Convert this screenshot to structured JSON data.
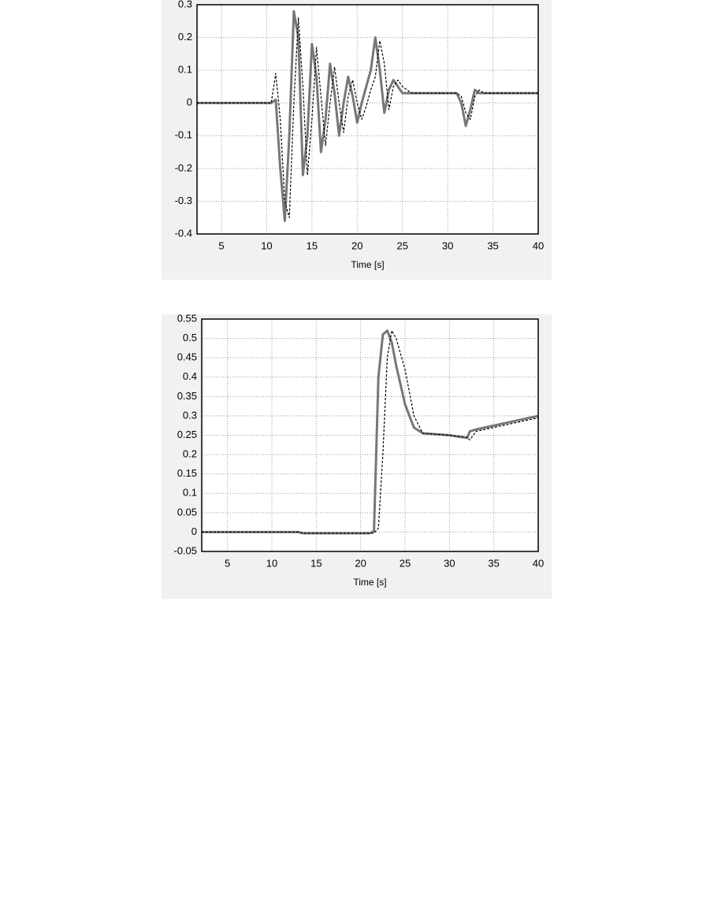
{
  "chart_data": [
    {
      "type": "line",
      "x_label": "Time [s]",
      "x": [
        2.3,
        5,
        10,
        10.5,
        11,
        11.5,
        12,
        12.5,
        13,
        13.5,
        14,
        14.5,
        15,
        15.5,
        16,
        16.5,
        17,
        17.5,
        18,
        18.5,
        19,
        19.5,
        20,
        20.5,
        21,
        21.5,
        22,
        22.5,
        23,
        23.5,
        24,
        24.5,
        25,
        26,
        30,
        31,
        31.5,
        32,
        32.5,
        33,
        33.5,
        34,
        40
      ],
      "series": [
        {
          "color": "#777777",
          "dash": false,
          "width": 3,
          "values": [
            0,
            0,
            0,
            0,
            0.01,
            -0.2,
            -0.36,
            -0.1,
            0.28,
            0.2,
            -0.22,
            -0.1,
            0.18,
            0.08,
            -0.15,
            -0.05,
            0.12,
            0.03,
            -0.1,
            0,
            0.08,
            0.02,
            -0.06,
            0,
            0.05,
            0.1,
            0.2,
            0.1,
            -0.03,
            0.04,
            0.07,
            0.05,
            0.03,
            0.03,
            0.03,
            0.03,
            0,
            -0.07,
            -0.02,
            0.04,
            0.03,
            0.03,
            0.03
          ]
        },
        {
          "color": "#000000",
          "dash": true,
          "width": 1.2,
          "values": [
            0,
            0,
            0,
            0,
            0.09,
            -0.05,
            -0.3,
            -0.35,
            0,
            0.26,
            0.05,
            -0.22,
            -0.05,
            0.17,
            0.02,
            -0.13,
            0,
            0.11,
            0,
            -0.09,
            0.02,
            0.07,
            0,
            -0.05,
            -0.01,
            0.04,
            0.08,
            0.19,
            0.12,
            -0.02,
            0.05,
            0.07,
            0.05,
            0.03,
            0.03,
            0.03,
            0.02,
            -0.03,
            -0.05,
            0.02,
            0.04,
            0.03,
            0.03
          ]
        }
      ],
      "xlim": [
        2.3,
        40
      ],
      "xticks": [
        5,
        10,
        15,
        20,
        25,
        30,
        35,
        40
      ],
      "ylim": [
        -0.4,
        0.3
      ],
      "yticks": [
        -0.4,
        -0.3,
        -0.2,
        -0.1,
        0,
        0.1,
        0.2,
        0.3
      ],
      "grid": true
    },
    {
      "type": "line",
      "x_label": "Time [s]",
      "x": [
        2.1,
        13,
        13.5,
        21,
        21.5,
        22,
        22.5,
        23,
        23.5,
        24,
        25,
        26,
        27,
        30,
        32,
        32.3,
        33,
        40
      ],
      "series": [
        {
          "color": "#777777",
          "dash": false,
          "width": 3,
          "values": [
            0,
            0,
            -0.003,
            -0.003,
            0.002,
            0.4,
            0.51,
            0.52,
            0.49,
            0.43,
            0.33,
            0.27,
            0.255,
            0.25,
            0.243,
            0.26,
            0.265,
            0.3
          ]
        },
        {
          "color": "#000000",
          "dash": true,
          "width": 1.2,
          "values": [
            0,
            0,
            -0.003,
            -0.003,
            -0.003,
            0.01,
            0.2,
            0.45,
            0.52,
            0.5,
            0.42,
            0.3,
            0.255,
            0.25,
            0.245,
            0.238,
            0.26,
            0.295
          ]
        }
      ],
      "xlim": [
        2.1,
        40
      ],
      "xticks": [
        5,
        10,
        15,
        20,
        25,
        30,
        35,
        40
      ],
      "ylim": [
        -0.05,
        0.55
      ],
      "yticks": [
        -0.05,
        0,
        0.05,
        0.1,
        0.15,
        0.2,
        0.25,
        0.3,
        0.35,
        0.4,
        0.45,
        0.5,
        0.55
      ],
      "grid": true
    }
  ]
}
